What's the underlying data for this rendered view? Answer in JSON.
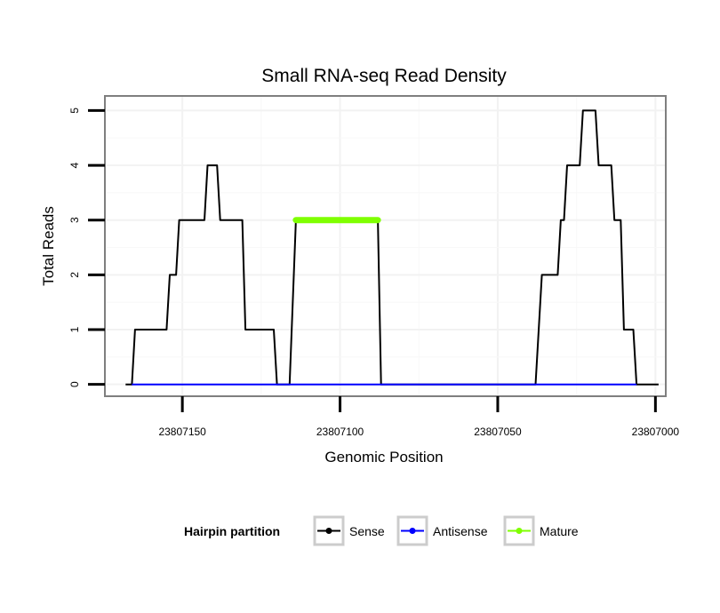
{
  "chart_data": {
    "type": "line",
    "title": "Small RNA-seq Read Density",
    "xlabel": "Genomic Position",
    "ylabel": "Total Reads",
    "xlim": [
      23807174,
      23806997
    ],
    "ylim": [
      -0.2,
      5.25
    ],
    "x_reversed": true,
    "x_ticks": [
      23807150,
      23807100,
      23807050,
      23807000
    ],
    "x_tick_labels": [
      "23807150",
      "23807100",
      "23807050",
      "23807000"
    ],
    "y_ticks": [
      0,
      1,
      2,
      3,
      4,
      5
    ],
    "y_tick_labels": [
      "0",
      "1",
      "2",
      "3",
      "4",
      "5"
    ],
    "grid": true,
    "legend": {
      "title": "Hairpin partition",
      "position": "bottom",
      "entries": [
        {
          "label": "Sense",
          "color": "#000000"
        },
        {
          "label": "Antisense",
          "color": "#0000ff"
        },
        {
          "label": "Mature",
          "color": "#7fff00"
        }
      ]
    },
    "series": [
      {
        "name": "Sense",
        "color": "#000000",
        "x": [
          23807168,
          23807166,
          23807165,
          23807155,
          23807154,
          23807152,
          23807151,
          23807149,
          23807148,
          23807143,
          23807142,
          23807139,
          23807138,
          23807136,
          23807135,
          23807131,
          23807130,
          23807121,
          23807120,
          23807117,
          23807116,
          23807114,
          23807113,
          23807088,
          23807087,
          23807039,
          23807038,
          23807036,
          23807035,
          23807031,
          23807030,
          23807029,
          23807028,
          23807024,
          23807023,
          23807019,
          23807018,
          23807014,
          23807013,
          23807011,
          23807010,
          23807007,
          23807006,
          23806999
        ],
        "values": [
          0,
          0,
          1,
          1,
          2,
          2,
          3,
          3,
          3,
          3,
          4,
          4,
          3,
          3,
          3,
          3,
          1,
          1,
          0,
          0,
          0,
          3,
          3,
          3,
          0,
          0,
          0,
          2,
          2,
          2,
          3,
          3,
          4,
          4,
          5,
          5,
          4,
          4,
          3,
          3,
          1,
          1,
          0,
          0
        ]
      },
      {
        "name": "Antisense",
        "color": "#0000ff",
        "x": [
          23807166,
          23807006
        ],
        "values": [
          0,
          0
        ]
      },
      {
        "name": "Mature",
        "color": "#7fff00",
        "x": [
          23807114,
          23807088
        ],
        "values": [
          3,
          3
        ]
      }
    ]
  }
}
